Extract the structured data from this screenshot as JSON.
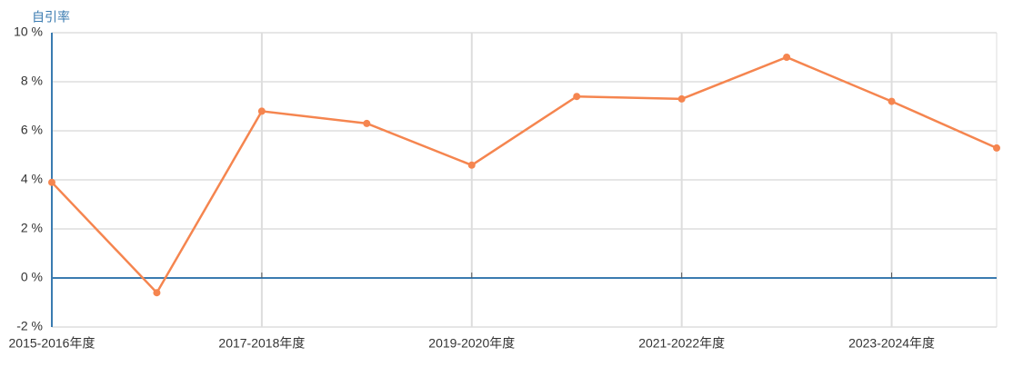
{
  "chart_data": {
    "type": "line",
    "y_axis_title": "自引率",
    "categories": [
      "2015-2016年度",
      null,
      "2017-2018年度",
      null,
      "2019-2020年度",
      null,
      "2021-2022年度",
      null,
      "2023-2024年度",
      null
    ],
    "series": [
      {
        "name": "自引率",
        "color": "#f5854f",
        "values": [
          3.9,
          -0.6,
          6.8,
          6.3,
          4.6,
          7.4,
          7.3,
          9.0,
          7.2,
          5.3
        ]
      }
    ],
    "ylim": [
      -2,
      10
    ],
    "yticks": [
      {
        "value": -2,
        "label": "-2 %"
      },
      {
        "value": 0,
        "label": "0 %"
      },
      {
        "value": 2,
        "label": "2 %"
      },
      {
        "value": 4,
        "label": "4 %"
      },
      {
        "value": 6,
        "label": "6 %"
      },
      {
        "value": 8,
        "label": "8 %"
      },
      {
        "value": 10,
        "label": "10 %"
      }
    ],
    "grid": true
  }
}
